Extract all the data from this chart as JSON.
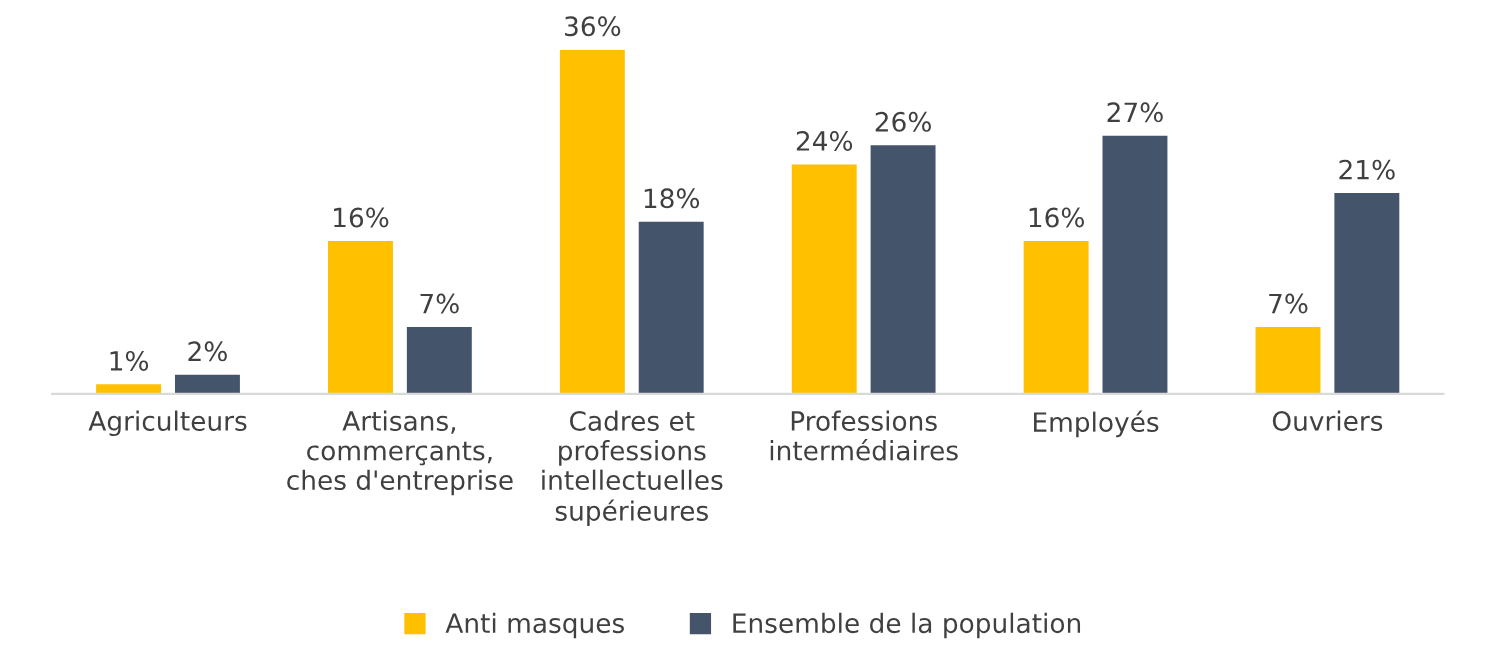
{
  "chart_data": {
    "type": "bar",
    "categories": [
      "Agriculteurs",
      "Artisans,\ncommerçants,\nches d'entreprise",
      "Cadres et\nprofessions\nintellectuelles\nsupérieures",
      "Professions\nintermédiaires",
      "Employés",
      "Ouvriers"
    ],
    "series": [
      {
        "name": "Anti masques",
        "color": "#ffc000",
        "values": [
          1,
          16,
          36,
          24,
          16,
          7
        ],
        "value_labels": [
          "1%",
          "16%",
          "36%",
          "24%",
          "16%",
          "7%"
        ]
      },
      {
        "name": "Ensemble de la population",
        "color": "#44546a",
        "values": [
          2,
          7,
          18,
          26,
          27,
          21
        ],
        "value_labels": [
          "2%",
          "7%",
          "18%",
          "26%",
          "27%",
          "21%"
        ]
      }
    ],
    "legend": "bottom",
    "grid": false
  }
}
